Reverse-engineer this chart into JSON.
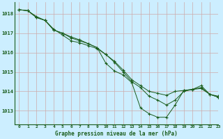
{
  "title": "Graphe pression niveau de la mer (hPa)",
  "background_color": "#cceeff",
  "grid_color": "#ccaaaa",
  "line_color": "#1a5c1a",
  "xlim": [
    -0.5,
    23
  ],
  "ylim": [
    1012.3,
    1018.6
  ],
  "yticks": [
    1013,
    1014,
    1015,
    1016,
    1017,
    1018
  ],
  "xticks": [
    0,
    1,
    2,
    3,
    4,
    5,
    6,
    7,
    8,
    9,
    10,
    11,
    12,
    13,
    14,
    15,
    16,
    17,
    18,
    19,
    20,
    21,
    22,
    23
  ],
  "series": [
    {
      "x": [
        0,
        1,
        2,
        3,
        4,
        5,
        6,
        7,
        8,
        9,
        10,
        11,
        12,
        13,
        14,
        15,
        16,
        17,
        18,
        19,
        20,
        21,
        22,
        23
      ],
      "y": [
        1018.2,
        1018.15,
        1017.8,
        1017.65,
        1017.2,
        1016.9,
        1016.6,
        1016.5,
        1016.35,
        1016.2,
        1015.9,
        1015.55,
        1015.1,
        1014.6,
        1014.3,
        1014.0,
        1013.9,
        1013.8,
        1014.0,
        1014.05,
        1014.1,
        1014.15,
        1013.85,
        1013.75
      ]
    },
    {
      "x": [
        0,
        1,
        2,
        3,
        4,
        5,
        6,
        7,
        8,
        9,
        10,
        11,
        12,
        13,
        14,
        15,
        16,
        17,
        18,
        19,
        20,
        21,
        22,
        23
      ],
      "y": [
        1018.2,
        1018.15,
        1017.8,
        1017.65,
        1017.15,
        1017.0,
        1016.8,
        1016.65,
        1016.45,
        1016.25,
        1015.9,
        1015.5,
        1015.0,
        1014.5,
        1014.2,
        1013.75,
        1013.55,
        1013.3,
        1013.55,
        1014.0,
        1014.1,
        1014.2,
        1013.85,
        1013.7
      ]
    },
    {
      "x": [
        0,
        1,
        2,
        3,
        4,
        5,
        6,
        7,
        8,
        9,
        10,
        11,
        12,
        13,
        14,
        15,
        16,
        17,
        18,
        19,
        20,
        21,
        22,
        23
      ],
      "y": [
        1018.2,
        1018.15,
        1017.85,
        1017.65,
        1017.15,
        1017.0,
        1016.75,
        1016.6,
        1016.45,
        1016.25,
        1015.45,
        1015.05,
        1014.85,
        1014.45,
        1013.15,
        1012.85,
        1012.67,
        1012.67,
        1013.3,
        1014.05,
        1014.1,
        1014.3,
        1013.85,
        1013.7
      ]
    }
  ]
}
